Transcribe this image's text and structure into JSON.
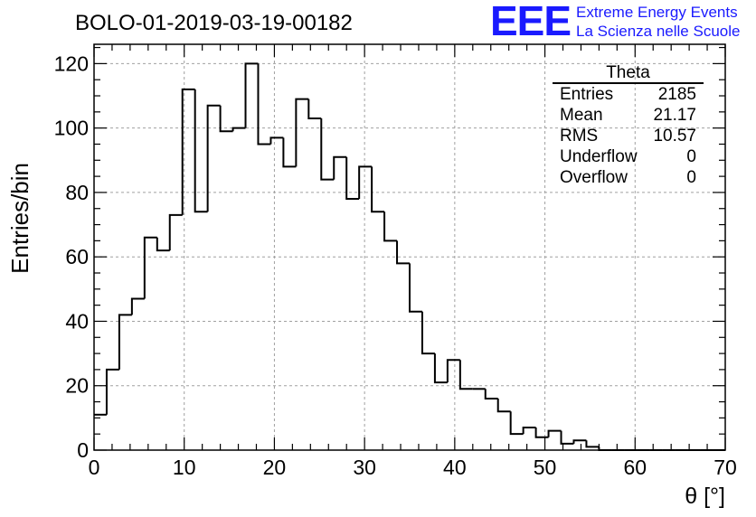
{
  "header": {
    "run_title": "BOLO-01-2019-03-19-00182",
    "logo_text": "EEE",
    "logo_line1": "Extreme Energy Events",
    "logo_line2": "La Scienza nelle Scuole"
  },
  "stats": {
    "title": "Theta",
    "rows": [
      {
        "label": "Entries",
        "value": "2185"
      },
      {
        "label": "Mean",
        "value": "21.17"
      },
      {
        "label": "RMS",
        "value": "10.57"
      },
      {
        "label": "Underflow",
        "value": "0"
      },
      {
        "label": "Overflow",
        "value": "0"
      }
    ]
  },
  "colors": {
    "logo": "#1a1aff",
    "line": "#000000",
    "grid": "#a0a0a0"
  },
  "chart_data": {
    "type": "histogram",
    "xlabel": "θ [°]",
    "ylabel": "Entries/bin",
    "xlim": [
      0,
      70
    ],
    "ylim": [
      0,
      126
    ],
    "bin_width": 1.4,
    "grid": true,
    "x_ticks": [
      0,
      10,
      20,
      30,
      40,
      50,
      60,
      70
    ],
    "y_ticks": [
      0,
      20,
      40,
      60,
      80,
      100,
      120
    ],
    "values": [
      11,
      25,
      42,
      47,
      66,
      62,
      73,
      112,
      74,
      107,
      99,
      100,
      120,
      95,
      97,
      88,
      109,
      103,
      84,
      91,
      78,
      88,
      74,
      65,
      58,
      43,
      30,
      21,
      28,
      19,
      19,
      16,
      12,
      5,
      7,
      4,
      6,
      2,
      3,
      1,
      0,
      0,
      0,
      0,
      0,
      0,
      0,
      0,
      0,
      0
    ]
  }
}
